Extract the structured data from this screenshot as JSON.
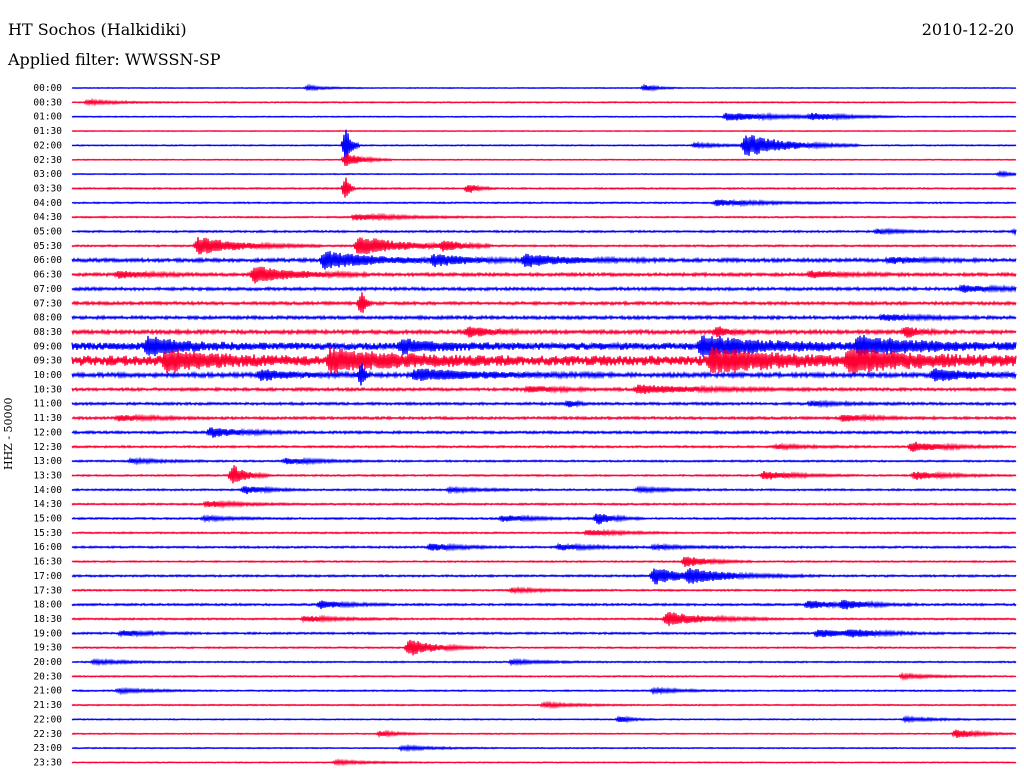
{
  "header": {
    "station": "HT Sochos (Halkidiki)",
    "date": "2010-12-20",
    "filter": "Applied filter: WWSSN-SP"
  },
  "channel_label": "HHZ - 50000",
  "colors": {
    "even_hour": "#0000ff",
    "half_hour": "#ff0033",
    "text": "#000000"
  },
  "chart_data": {
    "type": "line",
    "title": "HT Sochos (Halkidiki)",
    "subtitle": "Applied filter: WWSSN-SP",
    "ylabel": "HHZ - 50000",
    "xlabel": "",
    "grid": false,
    "x_unit": "minutes within row",
    "x_range": [
      0,
      30
    ],
    "rows": [
      {
        "label": "00:00",
        "color": "blue",
        "noise": 0.25,
        "events": [
          {
            "x": 7.5,
            "amp": 2,
            "dur": 0.6
          },
          {
            "x": 18.2,
            "amp": 3,
            "dur": 0.4
          }
        ]
      },
      {
        "label": "00:30",
        "color": "red",
        "noise": 0.35,
        "events": [
          {
            "x": 0.5,
            "amp": 2,
            "dur": 1
          }
        ]
      },
      {
        "label": "01:00",
        "color": "blue",
        "noise": 0.3,
        "events": [
          {
            "x": 20.8,
            "amp": 4,
            "dur": 1.8
          },
          {
            "x": 23.5,
            "amp": 3,
            "dur": 1
          }
        ]
      },
      {
        "label": "01:30",
        "color": "red",
        "noise": 0.25,
        "events": []
      },
      {
        "label": "02:00",
        "color": "blue",
        "noise": 0.35,
        "events": [
          {
            "x": 8.7,
            "amp": 22,
            "dur": 0.15
          },
          {
            "x": 21.4,
            "amp": 12,
            "dur": 1.2
          },
          {
            "x": 19.8,
            "amp": 2,
            "dur": 1
          }
        ]
      },
      {
        "label": "02:30",
        "color": "red",
        "noise": 0.3,
        "events": [
          {
            "x": 8.7,
            "amp": 7,
            "dur": 0.5
          }
        ]
      },
      {
        "label": "03:00",
        "color": "blue",
        "noise": 0.3,
        "events": [
          {
            "x": 29.5,
            "amp": 2,
            "dur": 0.5
          }
        ]
      },
      {
        "label": "03:30",
        "color": "red",
        "noise": 0.45,
        "events": [
          {
            "x": 8.7,
            "amp": 16,
            "dur": 0.1
          },
          {
            "x": 12.6,
            "amp": 5,
            "dur": 0.3
          }
        ]
      },
      {
        "label": "04:00",
        "color": "blue",
        "noise": 0.45,
        "events": [
          {
            "x": 20.5,
            "amp": 3,
            "dur": 1.5
          }
        ]
      },
      {
        "label": "04:30",
        "color": "red",
        "noise": 0.45,
        "events": [
          {
            "x": 9,
            "amp": 3,
            "dur": 1.5
          }
        ]
      },
      {
        "label": "05:00",
        "color": "blue",
        "noise": 0.6,
        "events": [
          {
            "x": 25.6,
            "amp": 2,
            "dur": 0.8
          },
          {
            "x": 30,
            "amp": 2,
            "dur": 0.6
          }
        ]
      },
      {
        "label": "05:30",
        "color": "red",
        "noise": 0.55,
        "events": [
          {
            "x": 4,
            "amp": 9,
            "dur": 1.3
          },
          {
            "x": 9.1,
            "amp": 10,
            "dur": 1.4
          },
          {
            "x": 11.8,
            "amp": 5,
            "dur": 0.5
          }
        ]
      },
      {
        "label": "06:00",
        "color": "blue",
        "noise": 1.1,
        "events": [
          {
            "x": 8,
            "amp": 9,
            "dur": 1.6
          },
          {
            "x": 11.5,
            "amp": 5,
            "dur": 1.2
          },
          {
            "x": 14.4,
            "amp": 6,
            "dur": 1.5
          },
          {
            "x": 26,
            "amp": 3,
            "dur": 1
          }
        ]
      },
      {
        "label": "06:30",
        "color": "red",
        "noise": 1.0,
        "events": [
          {
            "x": 5.8,
            "amp": 9,
            "dur": 1.2
          },
          {
            "x": 1.5,
            "amp": 3,
            "dur": 1
          },
          {
            "x": 23.5,
            "amp": 3,
            "dur": 1
          }
        ]
      },
      {
        "label": "07:00",
        "color": "blue",
        "noise": 0.95,
        "events": [
          {
            "x": 28.3,
            "amp": 3,
            "dur": 1.2
          }
        ]
      },
      {
        "label": "07:30",
        "color": "red",
        "noise": 0.95,
        "events": [
          {
            "x": 9.2,
            "amp": 14,
            "dur": 0.12
          }
        ]
      },
      {
        "label": "08:00",
        "color": "blue",
        "noise": 1.0,
        "events": [
          {
            "x": 25.8,
            "amp": 3,
            "dur": 1
          }
        ]
      },
      {
        "label": "08:30",
        "color": "red",
        "noise": 1.2,
        "events": [
          {
            "x": 12.6,
            "amp": 6,
            "dur": 0.6
          },
          {
            "x": 20.5,
            "amp": 5,
            "dur": 0.4
          },
          {
            "x": 26.5,
            "amp": 6,
            "dur": 0.4
          }
        ]
      },
      {
        "label": "09:00",
        "color": "blue",
        "noise": 2.6,
        "events": [
          {
            "x": 2.4,
            "amp": 9,
            "dur": 1
          },
          {
            "x": 20,
            "amp": 10,
            "dur": 2
          },
          {
            "x": 25,
            "amp": 8,
            "dur": 2
          },
          {
            "x": 10.5,
            "amp": 6,
            "dur": 1
          }
        ]
      },
      {
        "label": "09:30",
        "color": "red",
        "noise": 3.6,
        "events": [
          {
            "x": 3,
            "amp": 9,
            "dur": 1.5
          },
          {
            "x": 8.2,
            "amp": 10,
            "dur": 2
          },
          {
            "x": 20.3,
            "amp": 11,
            "dur": 2
          },
          {
            "x": 24.7,
            "amp": 10,
            "dur": 2
          }
        ]
      },
      {
        "label": "10:00",
        "color": "blue",
        "noise": 1.4,
        "events": [
          {
            "x": 6,
            "amp": 5,
            "dur": 1
          },
          {
            "x": 10.9,
            "amp": 6,
            "dur": 2
          },
          {
            "x": 27.4,
            "amp": 6,
            "dur": 1.2
          },
          {
            "x": 9.2,
            "amp": 13,
            "dur": 0.1
          }
        ]
      },
      {
        "label": "10:30",
        "color": "red",
        "noise": 0.9,
        "events": [
          {
            "x": 18,
            "amp": 4,
            "dur": 2
          },
          {
            "x": 14.5,
            "amp": 3,
            "dur": 1
          }
        ]
      },
      {
        "label": "11:00",
        "color": "blue",
        "noise": 0.8,
        "events": [
          {
            "x": 15.8,
            "amp": 4,
            "dur": 0.2
          },
          {
            "x": 23.5,
            "amp": 2,
            "dur": 1
          }
        ]
      },
      {
        "label": "11:30",
        "color": "red",
        "noise": 0.8,
        "events": [
          {
            "x": 1.5,
            "amp": 3,
            "dur": 1
          },
          {
            "x": 24.5,
            "amp": 3,
            "dur": 1
          }
        ]
      },
      {
        "label": "12:00",
        "color": "blue",
        "noise": 0.8,
        "events": [
          {
            "x": 4.4,
            "amp": 5,
            "dur": 1
          }
        ]
      },
      {
        "label": "12:30",
        "color": "red",
        "noise": 0.6,
        "events": [
          {
            "x": 26.7,
            "amp": 5,
            "dur": 1
          },
          {
            "x": 22.4,
            "amp": 2,
            "dur": 1
          }
        ]
      },
      {
        "label": "13:00",
        "color": "blue",
        "noise": 0.55,
        "events": [
          {
            "x": 6.8,
            "amp": 3,
            "dur": 1
          },
          {
            "x": 1.9,
            "amp": 2,
            "dur": 1
          }
        ]
      },
      {
        "label": "13:30",
        "color": "red",
        "noise": 0.5,
        "events": [
          {
            "x": 5.1,
            "amp": 12,
            "dur": 0.4
          },
          {
            "x": 22,
            "amp": 4,
            "dur": 1
          },
          {
            "x": 26.8,
            "amp": 4,
            "dur": 1
          }
        ]
      },
      {
        "label": "14:00",
        "color": "blue",
        "noise": 0.55,
        "events": [
          {
            "x": 5.5,
            "amp": 4,
            "dur": 0.7
          },
          {
            "x": 12,
            "amp": 2,
            "dur": 1
          },
          {
            "x": 18,
            "amp": 2,
            "dur": 1
          }
        ]
      },
      {
        "label": "14:30",
        "color": "red",
        "noise": 0.55,
        "events": [
          {
            "x": 4.3,
            "amp": 3,
            "dur": 1
          }
        ]
      },
      {
        "label": "15:00",
        "color": "blue",
        "noise": 0.55,
        "events": [
          {
            "x": 16.7,
            "amp": 6,
            "dur": 0.5
          },
          {
            "x": 13.7,
            "amp": 3,
            "dur": 1
          },
          {
            "x": 4.2,
            "amp": 2,
            "dur": 1
          }
        ]
      },
      {
        "label": "15:30",
        "color": "red",
        "noise": 0.5,
        "events": [
          {
            "x": 16.4,
            "amp": 3,
            "dur": 1
          }
        ]
      },
      {
        "label": "16:00",
        "color": "blue",
        "noise": 0.6,
        "events": [
          {
            "x": 11.4,
            "amp": 4,
            "dur": 0.8
          },
          {
            "x": 15.5,
            "amp": 3,
            "dur": 1
          },
          {
            "x": 18.5,
            "amp": 2,
            "dur": 1
          }
        ]
      },
      {
        "label": "16:30",
        "color": "red",
        "noise": 0.45,
        "events": [
          {
            "x": 19.5,
            "amp": 6,
            "dur": 0.7
          }
        ]
      },
      {
        "label": "17:00",
        "color": "blue",
        "noise": 0.6,
        "events": [
          {
            "x": 18.5,
            "amp": 9,
            "dur": 0.9
          },
          {
            "x": 19.6,
            "amp": 6,
            "dur": 1.4
          }
        ]
      },
      {
        "label": "17:30",
        "color": "red",
        "noise": 0.5,
        "events": [
          {
            "x": 14,
            "amp": 2,
            "dur": 1
          }
        ]
      },
      {
        "label": "18:00",
        "color": "blue",
        "noise": 0.65,
        "events": [
          {
            "x": 7.9,
            "amp": 4,
            "dur": 0.8
          },
          {
            "x": 23.4,
            "amp": 4,
            "dur": 0.8
          },
          {
            "x": 24.5,
            "amp": 4,
            "dur": 0.8
          }
        ]
      },
      {
        "label": "18:30",
        "color": "red",
        "noise": 0.55,
        "events": [
          {
            "x": 18.9,
            "amp": 7,
            "dur": 1.2
          },
          {
            "x": 7.4,
            "amp": 3,
            "dur": 1
          }
        ]
      },
      {
        "label": "19:00",
        "color": "blue",
        "noise": 0.6,
        "events": [
          {
            "x": 1.6,
            "amp": 3,
            "dur": 0.8
          },
          {
            "x": 23.7,
            "amp": 4,
            "dur": 1
          },
          {
            "x": 24.7,
            "amp": 3,
            "dur": 1
          }
        ]
      },
      {
        "label": "19:30",
        "color": "red",
        "noise": 0.45,
        "events": [
          {
            "x": 10.7,
            "amp": 9,
            "dur": 0.8
          }
        ]
      },
      {
        "label": "20:00",
        "color": "blue",
        "noise": 0.45,
        "events": [
          {
            "x": 0.7,
            "amp": 2,
            "dur": 1
          },
          {
            "x": 14,
            "amp": 2,
            "dur": 1
          }
        ]
      },
      {
        "label": "20:30",
        "color": "red",
        "noise": 0.4,
        "events": [
          {
            "x": 26.4,
            "amp": 2,
            "dur": 1
          }
        ]
      },
      {
        "label": "21:00",
        "color": "blue",
        "noise": 0.45,
        "events": [
          {
            "x": 1.5,
            "amp": 2,
            "dur": 1
          },
          {
            "x": 18.5,
            "amp": 2,
            "dur": 1
          }
        ]
      },
      {
        "label": "21:30",
        "color": "red",
        "noise": 0.4,
        "events": [
          {
            "x": 15,
            "amp": 2,
            "dur": 1
          }
        ]
      },
      {
        "label": "22:00",
        "color": "blue",
        "noise": 0.35,
        "events": [
          {
            "x": 17.4,
            "amp": 3,
            "dur": 0.4
          },
          {
            "x": 26.5,
            "amp": 2,
            "dur": 1
          }
        ]
      },
      {
        "label": "22:30",
        "color": "red",
        "noise": 0.35,
        "events": [
          {
            "x": 28.1,
            "amp": 5,
            "dur": 0.6
          },
          {
            "x": 9.8,
            "amp": 3,
            "dur": 0.5
          }
        ]
      },
      {
        "label": "23:00",
        "color": "blue",
        "noise": 0.35,
        "events": [
          {
            "x": 10.5,
            "amp": 2,
            "dur": 1
          }
        ]
      },
      {
        "label": "23:30",
        "color": "red",
        "noise": 0.3,
        "events": [
          {
            "x": 8.4,
            "amp": 2,
            "dur": 1
          }
        ]
      }
    ]
  }
}
